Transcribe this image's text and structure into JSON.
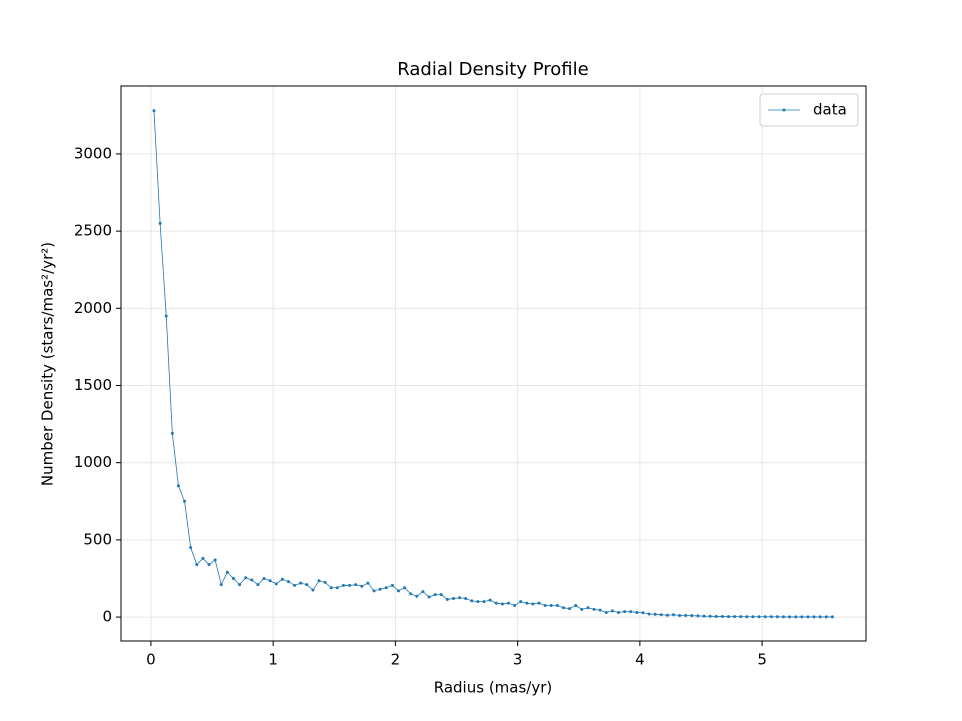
{
  "chart_data": {
    "type": "line",
    "title": "Radial Density Profile",
    "xlabel": "Radius (mas/yr)",
    "ylabel": "Number Density (stars/mas²/yr²)",
    "x": [
      0.025,
      0.075,
      0.125,
      0.175,
      0.225,
      0.275,
      0.325,
      0.375,
      0.425,
      0.475,
      0.525,
      0.575,
      0.625,
      0.675,
      0.725,
      0.775,
      0.825,
      0.875,
      0.925,
      0.975,
      1.025,
      1.075,
      1.125,
      1.175,
      1.225,
      1.275,
      1.325,
      1.375,
      1.425,
      1.475,
      1.525,
      1.575,
      1.625,
      1.675,
      1.725,
      1.775,
      1.825,
      1.875,
      1.925,
      1.975,
      2.025,
      2.075,
      2.125,
      2.175,
      2.225,
      2.275,
      2.325,
      2.375,
      2.425,
      2.475,
      2.525,
      2.575,
      2.625,
      2.675,
      2.725,
      2.775,
      2.825,
      2.875,
      2.925,
      2.975,
      3.025,
      3.075,
      3.125,
      3.175,
      3.225,
      3.275,
      3.325,
      3.375,
      3.425,
      3.475,
      3.525,
      3.575,
      3.625,
      3.675,
      3.725,
      3.775,
      3.825,
      3.875,
      3.925,
      3.975,
      4.025,
      4.075,
      4.125,
      4.175,
      4.225,
      4.275,
      4.325,
      4.375,
      4.425,
      4.475,
      4.525,
      4.575,
      4.625,
      4.675,
      4.725,
      4.775,
      4.825,
      4.875,
      4.925,
      4.975,
      5.025,
      5.075,
      5.125,
      5.175,
      5.225,
      5.275,
      5.325,
      5.375,
      5.425,
      5.475,
      5.525,
      5.575
    ],
    "series": [
      {
        "name": "data",
        "color": "#1f77b4",
        "values": [
          3280,
          2550,
          1950,
          1190,
          850,
          750,
          450,
          340,
          380,
          340,
          370,
          210,
          290,
          250,
          210,
          255,
          240,
          210,
          250,
          235,
          215,
          245,
          230,
          205,
          220,
          210,
          175,
          235,
          225,
          190,
          190,
          205,
          205,
          210,
          200,
          220,
          170,
          180,
          190,
          205,
          170,
          190,
          150,
          135,
          165,
          130,
          145,
          145,
          115,
          120,
          125,
          120,
          105,
          100,
          100,
          110,
          90,
          85,
          90,
          75,
          100,
          90,
          85,
          90,
          75,
          75,
          75,
          60,
          55,
          75,
          50,
          60,
          50,
          45,
          30,
          40,
          30,
          35,
          35,
          30,
          28,
          20,
          18,
          15,
          12,
          15,
          10,
          10,
          9,
          8,
          6,
          5,
          4,
          4,
          3,
          3,
          3,
          2,
          2,
          2,
          2,
          2,
          2,
          1,
          1,
          1,
          1,
          1,
          1,
          1,
          1,
          1
        ]
      }
    ],
    "xlim": [
      -0.245,
      5.85
    ],
    "ylim": [
      -155,
      3440
    ],
    "xticks": [
      0,
      1,
      2,
      3,
      4,
      5
    ],
    "yticks": [
      0,
      500,
      1000,
      1500,
      2000,
      2500,
      3000
    ],
    "grid": true,
    "legend": "upper right"
  }
}
